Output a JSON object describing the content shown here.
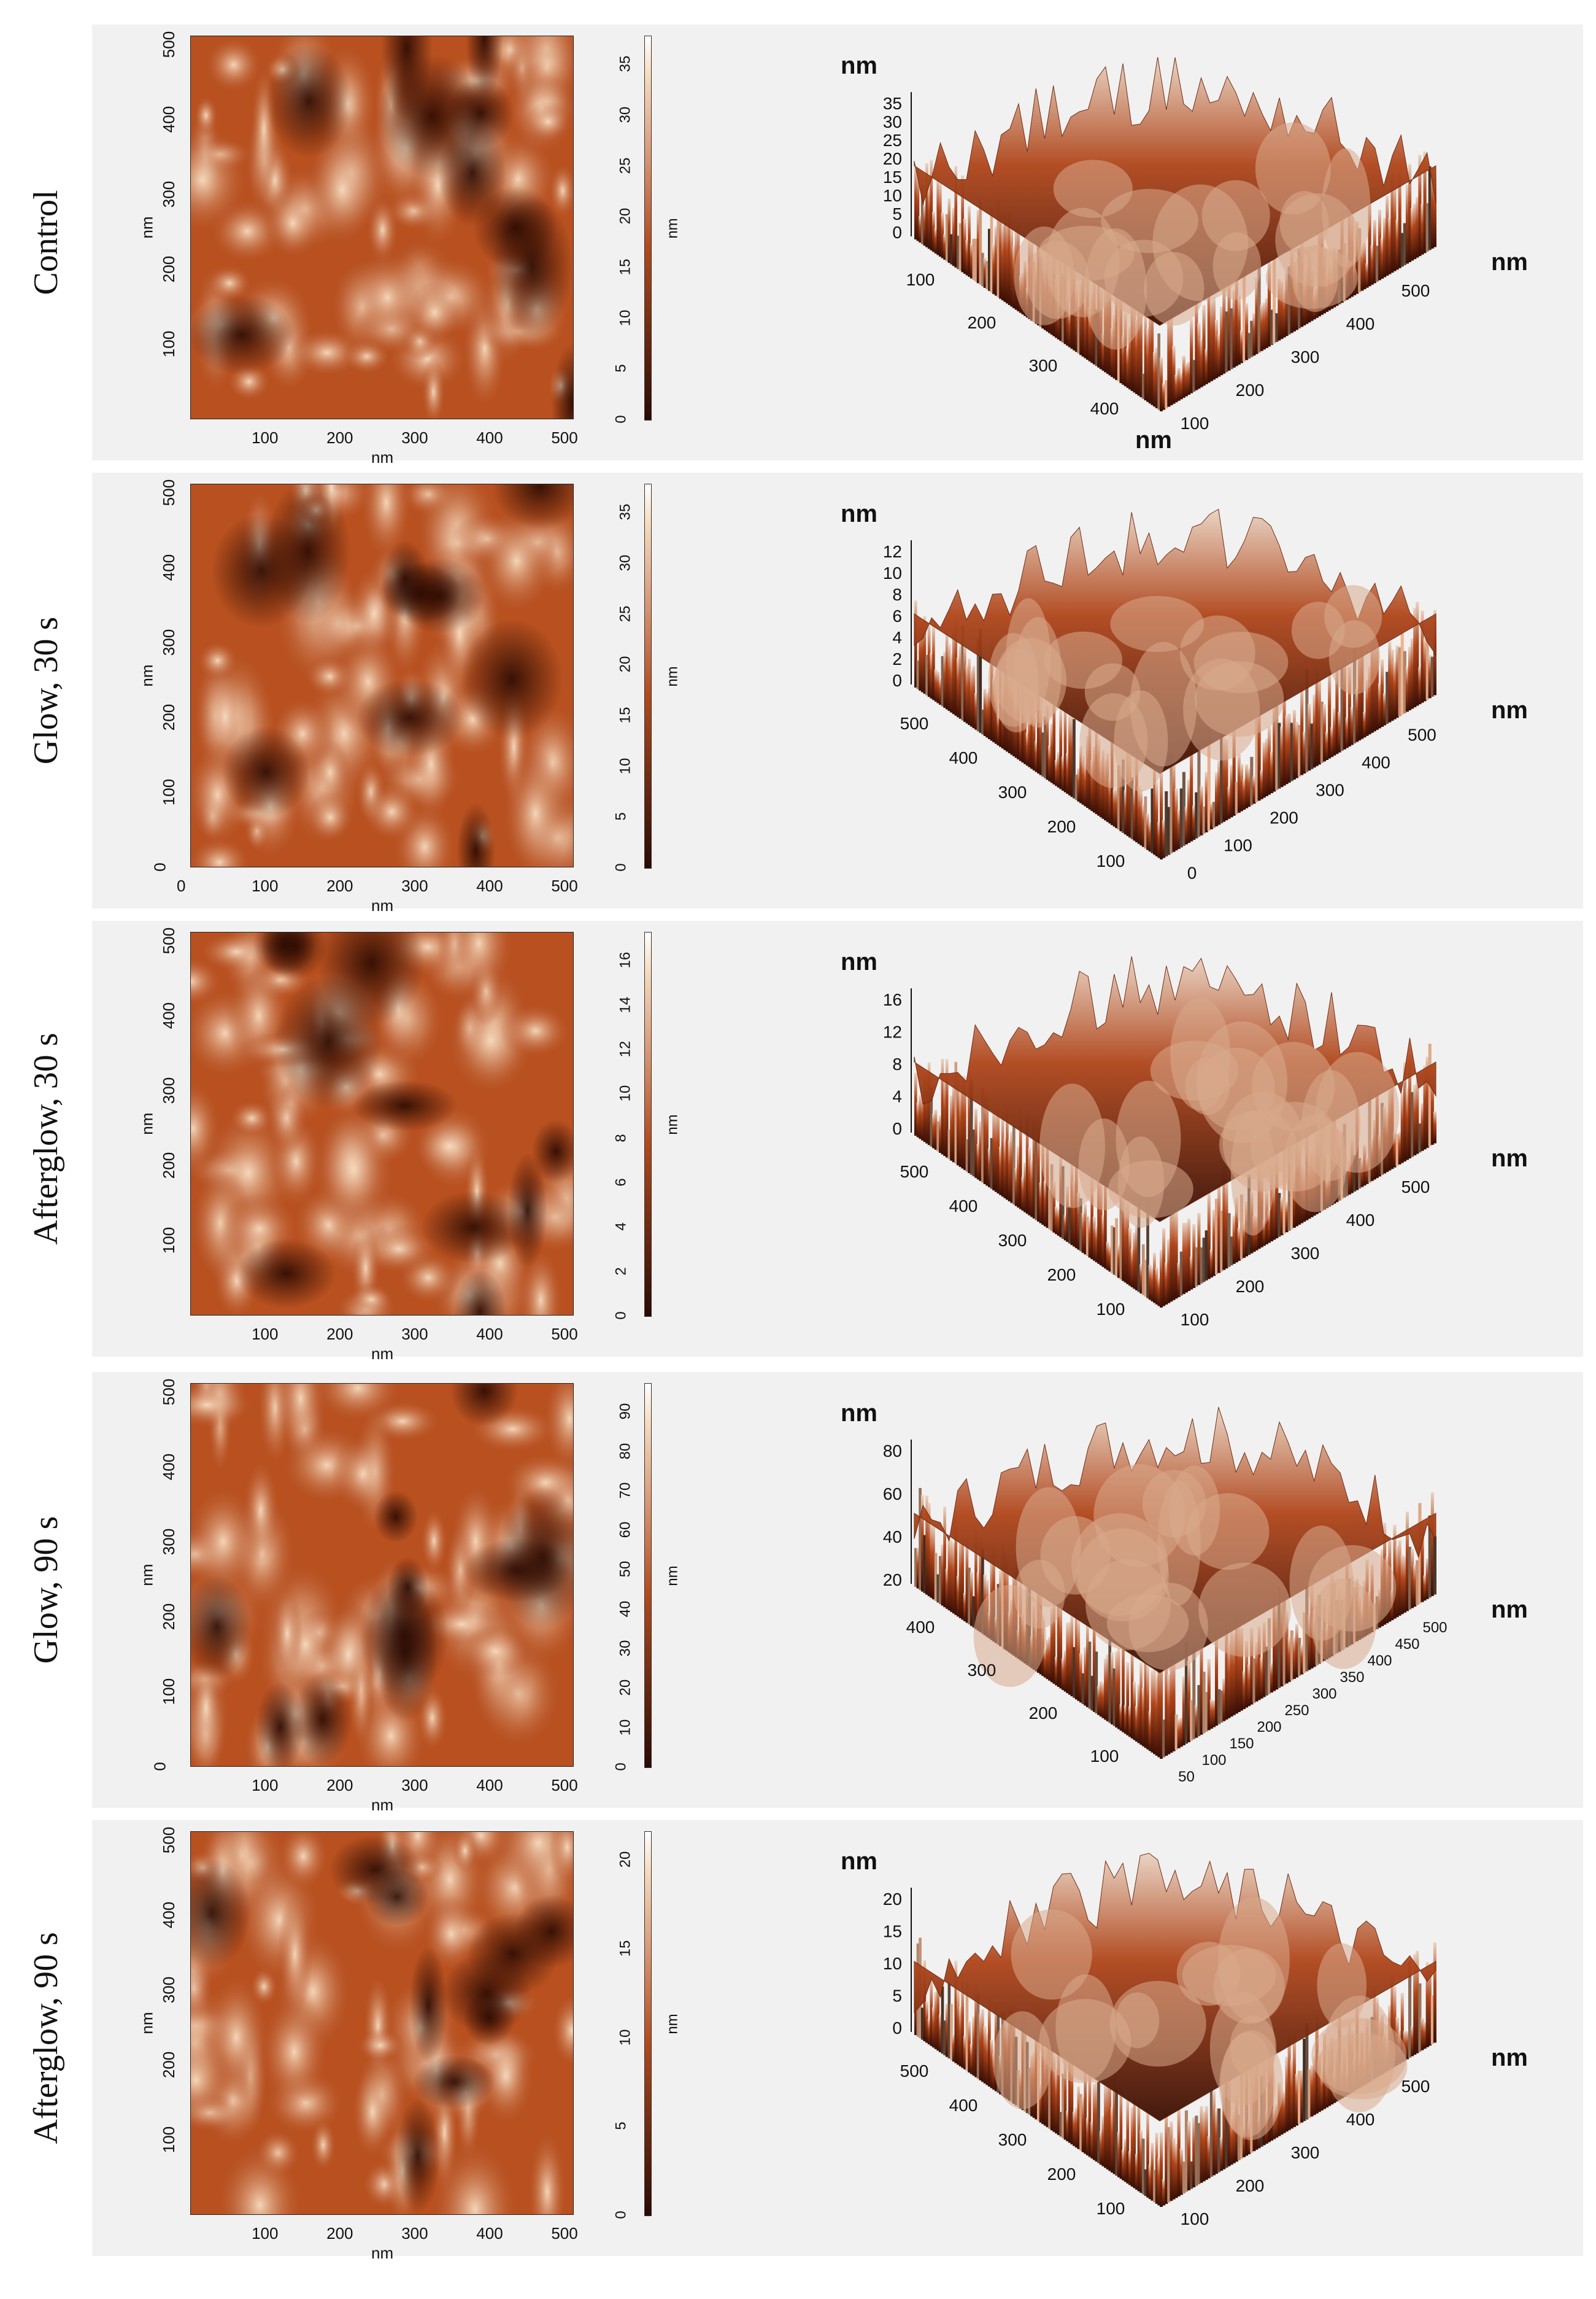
{
  "axis_unit": "nm",
  "panels": [
    {
      "label": "Control",
      "map_x_ticks": [
        "100",
        "200",
        "300",
        "400",
        "500"
      ],
      "map_y_ticks": [
        "100",
        "200",
        "300",
        "400",
        "500"
      ],
      "colorbar_ticks": [
        "0",
        "5",
        "10",
        "15",
        "20",
        "25",
        "30",
        "35"
      ],
      "surface_z_ticks": [
        "0",
        "5",
        "10",
        "15",
        "20",
        "25",
        "30",
        "35"
      ],
      "surface_left_ticks": [
        "100",
        "200",
        "300",
        "400"
      ],
      "surface_right_ticks": [
        "100",
        "200",
        "300",
        "400",
        "500"
      ]
    },
    {
      "label": "Glow, 30 s",
      "map_x_ticks": [
        "0",
        "100",
        "200",
        "300",
        "400",
        "500"
      ],
      "map_y_ticks": [
        "0",
        "100",
        "200",
        "300",
        "400",
        "500"
      ],
      "colorbar_ticks": [
        "0",
        "5",
        "10",
        "15",
        "20",
        "25",
        "30",
        "35"
      ],
      "surface_z_ticks": [
        "0",
        "2",
        "4",
        "6",
        "8",
        "10",
        "12"
      ],
      "surface_left_ticks": [
        "500",
        "400",
        "300",
        "200",
        "100"
      ],
      "surface_right_ticks": [
        "0",
        "100",
        "200",
        "300",
        "400",
        "500"
      ]
    },
    {
      "label": "Afterglow, 30 s",
      "map_x_ticks": [
        "100",
        "200",
        "300",
        "400",
        "500"
      ],
      "map_y_ticks": [
        "100",
        "200",
        "300",
        "400",
        "500"
      ],
      "colorbar_ticks": [
        "0",
        "2",
        "4",
        "6",
        "8",
        "10",
        "12",
        "14",
        "16"
      ],
      "surface_z_ticks": [
        "0",
        "4",
        "8",
        "12",
        "16"
      ],
      "surface_left_ticks": [
        "500",
        "400",
        "300",
        "200",
        "100"
      ],
      "surface_right_ticks": [
        "100",
        "200",
        "300",
        "400",
        "500"
      ]
    },
    {
      "label": "Glow, 90 s",
      "map_x_ticks": [
        "100",
        "200",
        "300",
        "400",
        "500"
      ],
      "map_y_ticks": [
        "0",
        "100",
        "200",
        "300",
        "400",
        "500"
      ],
      "colorbar_ticks": [
        "0",
        "10",
        "20",
        "30",
        "40",
        "50",
        "60",
        "70",
        "80",
        "90"
      ],
      "surface_z_ticks": [
        "20",
        "40",
        "60",
        "80"
      ],
      "surface_left_ticks": [
        "400",
        "300",
        "200",
        "100"
      ],
      "surface_right_ticks": [
        "50",
        "100",
        "150",
        "200",
        "250",
        "300",
        "350",
        "400",
        "450",
        "500"
      ]
    },
    {
      "label": "Afterglow, 90 s",
      "map_x_ticks": [
        "100",
        "200",
        "300",
        "400",
        "500"
      ],
      "map_y_ticks": [
        "100",
        "200",
        "300",
        "400",
        "500"
      ],
      "colorbar_ticks": [
        "0",
        "5",
        "10",
        "15",
        "20"
      ],
      "surface_z_ticks": [
        "0",
        "5",
        "10",
        "15",
        "20"
      ],
      "surface_left_ticks": [
        "500",
        "400",
        "300",
        "200",
        "100"
      ],
      "surface_right_ticks": [
        "100",
        "200",
        "300",
        "400",
        "500"
      ]
    }
  ],
  "colors": {
    "dark": "#2a0a02",
    "mid": "#b14a1e",
    "light": "#f7dcc0"
  }
}
